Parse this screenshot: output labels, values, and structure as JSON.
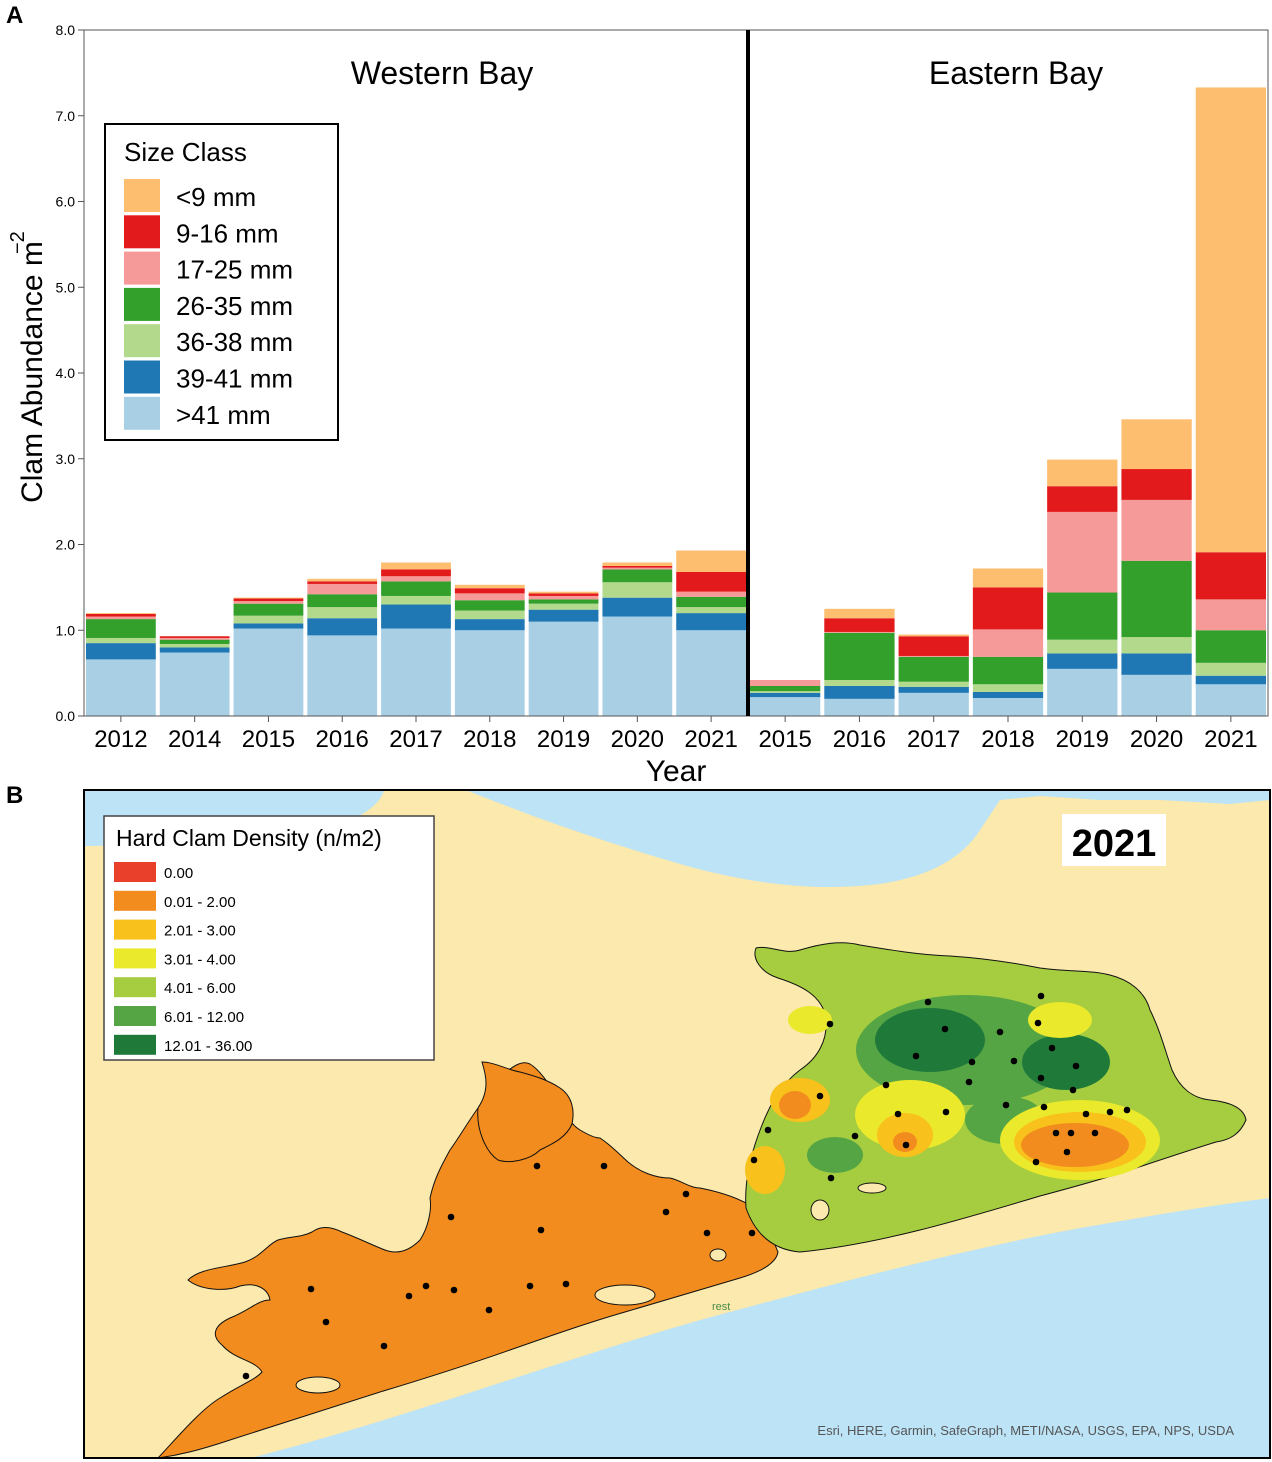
{
  "panels": {
    "a_label": "A",
    "b_label": "B"
  },
  "chart_data": {
    "type": "bar",
    "stacked": true,
    "ylabel": "Clam Abundance m",
    "ylabel_superscript": "−2",
    "xlabel": "Year",
    "ylim": [
      0,
      8
    ],
    "yticks": [
      "0.0",
      "1.0",
      "2.0",
      "3.0",
      "4.0",
      "5.0",
      "6.0",
      "7.0",
      "8.0"
    ],
    "grid": false,
    "legend_title": "Size Class",
    "legend_position": "upper-left",
    "size_classes": [
      {
        "name": ">41 mm",
        "color": "#a9cfe5"
      },
      {
        "name": "39-41 mm",
        "color": "#1f78b4"
      },
      {
        "name": "36-38 mm",
        "color": "#b2d98c"
      },
      {
        "name": "26-35 mm",
        "color": "#33a02c"
      },
      {
        "name": "17-25 mm",
        "color": "#f59a98"
      },
      {
        "name": "9-16 mm",
        "color": "#e31a1c"
      },
      {
        "name": "<9 mm",
        "color": "#fdbe6f"
      }
    ],
    "groups": [
      {
        "name": "Western Bay",
        "categories": [
          "2012",
          "2014",
          "2015",
          "2016",
          "2017",
          "2018",
          "2019",
          "2020",
          "2021"
        ],
        "stacks": [
          [
            0.66,
            0.19,
            0.06,
            0.22,
            0.03,
            0.03,
            0.01
          ],
          [
            0.74,
            0.06,
            0.04,
            0.05,
            0.02,
            0.02,
            0.0
          ],
          [
            1.02,
            0.06,
            0.09,
            0.14,
            0.03,
            0.03,
            0.01
          ],
          [
            0.94,
            0.2,
            0.13,
            0.15,
            0.12,
            0.03,
            0.03
          ],
          [
            1.02,
            0.28,
            0.1,
            0.17,
            0.06,
            0.08,
            0.08
          ],
          [
            1.0,
            0.13,
            0.1,
            0.12,
            0.08,
            0.06,
            0.04
          ],
          [
            1.1,
            0.14,
            0.07,
            0.05,
            0.04,
            0.03,
            0.02
          ],
          [
            1.16,
            0.22,
            0.18,
            0.15,
            0.02,
            0.02,
            0.04
          ],
          [
            1.0,
            0.2,
            0.07,
            0.12,
            0.06,
            0.23,
            0.25
          ]
        ]
      },
      {
        "name": "Eastern Bay",
        "categories": [
          "2015",
          "2016",
          "2017",
          "2018",
          "2019",
          "2020",
          "2021"
        ],
        "stacks": [
          [
            0.22,
            0.05,
            0.02,
            0.06,
            0.07,
            0.0,
            0.0
          ],
          [
            0.2,
            0.15,
            0.07,
            0.55,
            0.01,
            0.16,
            0.11
          ],
          [
            0.27,
            0.07,
            0.06,
            0.29,
            0.01,
            0.23,
            0.02
          ],
          [
            0.21,
            0.07,
            0.09,
            0.32,
            0.32,
            0.49,
            0.22
          ],
          [
            0.55,
            0.18,
            0.16,
            0.55,
            0.94,
            0.3,
            0.31
          ],
          [
            0.48,
            0.25,
            0.19,
            0.89,
            0.71,
            0.36,
            0.58
          ],
          [
            0.37,
            0.1,
            0.15,
            0.38,
            0.36,
            0.55,
            5.42
          ]
        ]
      }
    ]
  },
  "map": {
    "title": "Hard Clam Density (n/m2)",
    "year": "2021",
    "credit": "Esri, HERE, Garmin, SafeGraph, METI/NASA, USGS, EPA, NPS, USDA",
    "small_label": "rest",
    "legend": [
      {
        "label": "0.00",
        "color": "#e8402a"
      },
      {
        "label": "0.01 - 2.00",
        "color": "#f28c1e"
      },
      {
        "label": "2.01 - 3.00",
        "color": "#f9c11c"
      },
      {
        "label": "3.01 - 4.00",
        "color": "#eae92c"
      },
      {
        "label": "4.01 - 6.00",
        "color": "#a5cd3f"
      },
      {
        "label": "6.01 - 12.00",
        "color": "#56a545"
      },
      {
        "label": "12.01 - 36.00",
        "color": "#1f7a3a"
      }
    ],
    "colors": {
      "land": "#fbe9ad",
      "water": "#bde3f6"
    }
  }
}
